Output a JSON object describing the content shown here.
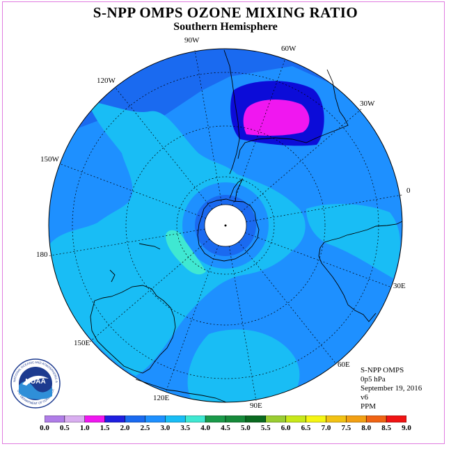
{
  "title": "S-NPP OMPS OZONE MIXING RATIO",
  "subtitle": "Southern Hemisphere",
  "longitude_labels": [
    "90W",
    "60W",
    "120W",
    "30W",
    "150W",
    "0",
    "180",
    "30E",
    "150E",
    "60E",
    "120E",
    "90E"
  ],
  "info": {
    "instrument": "S-NPP OMPS",
    "level": "0p5 hPa",
    "date": "September 19, 2016",
    "version": "v6",
    "units": "PPM"
  },
  "colorbar": {
    "ticks": [
      "0.0",
      "0.5",
      "1.0",
      "1.5",
      "2.0",
      "2.5",
      "3.0",
      "3.5",
      "4.0",
      "4.5",
      "5.0",
      "5.5",
      "6.0",
      "6.5",
      "7.0",
      "7.5",
      "8.0",
      "8.5",
      "9.0"
    ],
    "colors": [
      "#b07de8",
      "#d9aef0",
      "#f017f0",
      "#1f1fe0",
      "#1a6af0",
      "#1e90ff",
      "#19bdf5",
      "#3fe8d2",
      "#1a9a4a",
      "#168a3a",
      "#0a6a20",
      "#9acd32",
      "#c8e81a",
      "#f5f514",
      "#f2c214",
      "#f2a014",
      "#f06414",
      "#f01414",
      "#8b5a3c"
    ]
  },
  "logo": {
    "text": "NOAA",
    "ring_text": "NATIONAL OCEANIC AND ATMOSPHERIC ADMINISTRATION",
    "ring_text_bottom": "U.S. DEPARTMENT OF COMMERCE"
  },
  "map_colors": {
    "background_field": "#1a6af0",
    "band_3": "#19bdf5",
    "band_2_5": "#1e90ff",
    "band_1_5": "#0c0cd8",
    "band_1": "#f017f0",
    "band_3_5": "#3fe8d2",
    "pole_mask": "#ffffff"
  }
}
